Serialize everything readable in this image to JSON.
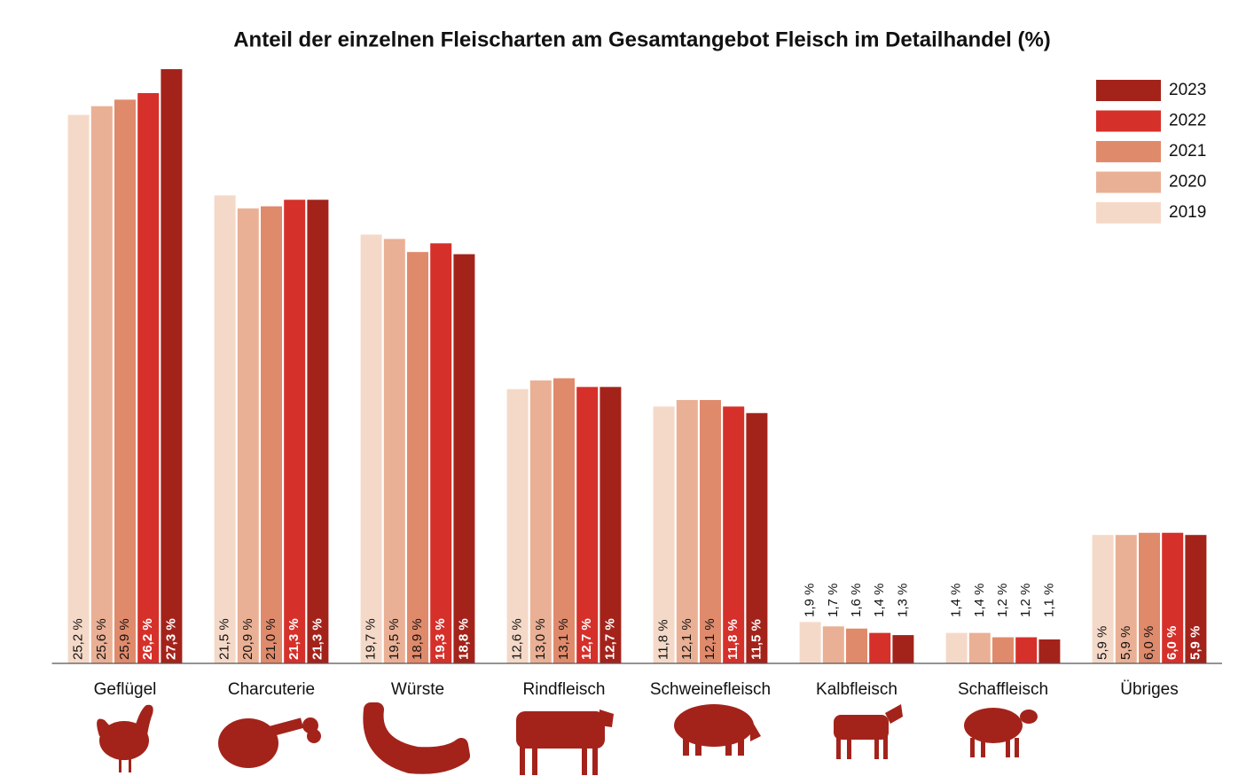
{
  "chart_data": {
    "type": "bar",
    "title": "Anteil der einzelnen Fleischarten am Gesamtangebot Fleisch im Detailhandel (%)",
    "categories": [
      "Geflügel",
      "Charcuterie",
      "Würste",
      "Rindfleisch",
      "Schweinefleisch",
      "Kalbfleisch",
      "Schaffleisch",
      "Übriges"
    ],
    "series": [
      {
        "name": "2019",
        "color": "#f5d9c8",
        "values": [
          25.2,
          21.5,
          19.7,
          12.6,
          11.8,
          1.9,
          1.4,
          5.9
        ],
        "value_labels": [
          "25,2 %",
          "21,5 %",
          "19,7 %",
          "12,6 %",
          "11,8 %",
          "1,9 %",
          "1,4 %",
          "5,9 %"
        ]
      },
      {
        "name": "2020",
        "color": "#eab095",
        "values": [
          25.6,
          20.9,
          19.5,
          13.0,
          12.1,
          1.7,
          1.4,
          5.9
        ],
        "value_labels": [
          "25,6 %",
          "20,9 %",
          "19,5 %",
          "13,0 %",
          "12,1 %",
          "1,7 %",
          "1,4 %",
          "5,9 %"
        ]
      },
      {
        "name": "2021",
        "color": "#e08a6c",
        "values": [
          25.9,
          21.0,
          18.9,
          13.1,
          12.1,
          1.6,
          1.2,
          6.0
        ],
        "value_labels": [
          "25,9 %",
          "21,0 %",
          "18,9 %",
          "13,1 %",
          "12,1 %",
          "1,6 %",
          "1,2 %",
          "6,0 %"
        ]
      },
      {
        "name": "2022",
        "color": "#d6302a",
        "values": [
          26.2,
          21.3,
          19.3,
          12.7,
          11.8,
          1.4,
          1.2,
          6.0
        ],
        "value_labels": [
          "26,2 %",
          "21,3 %",
          "19,3 %",
          "12,7 %",
          "11,8 %",
          "1,4 %",
          "1,2 %",
          "6,0 %"
        ]
      },
      {
        "name": "2023",
        "color": "#a3231b",
        "values": [
          27.3,
          21.3,
          18.8,
          12.7,
          11.5,
          1.3,
          1.1,
          5.9
        ],
        "value_labels": [
          "27,3 %",
          "21,3 %",
          "18,8 %",
          "12,7 %",
          "11,5 %",
          "1,3 %",
          "1,1 %",
          "5,9 %"
        ]
      }
    ]
  }
}
